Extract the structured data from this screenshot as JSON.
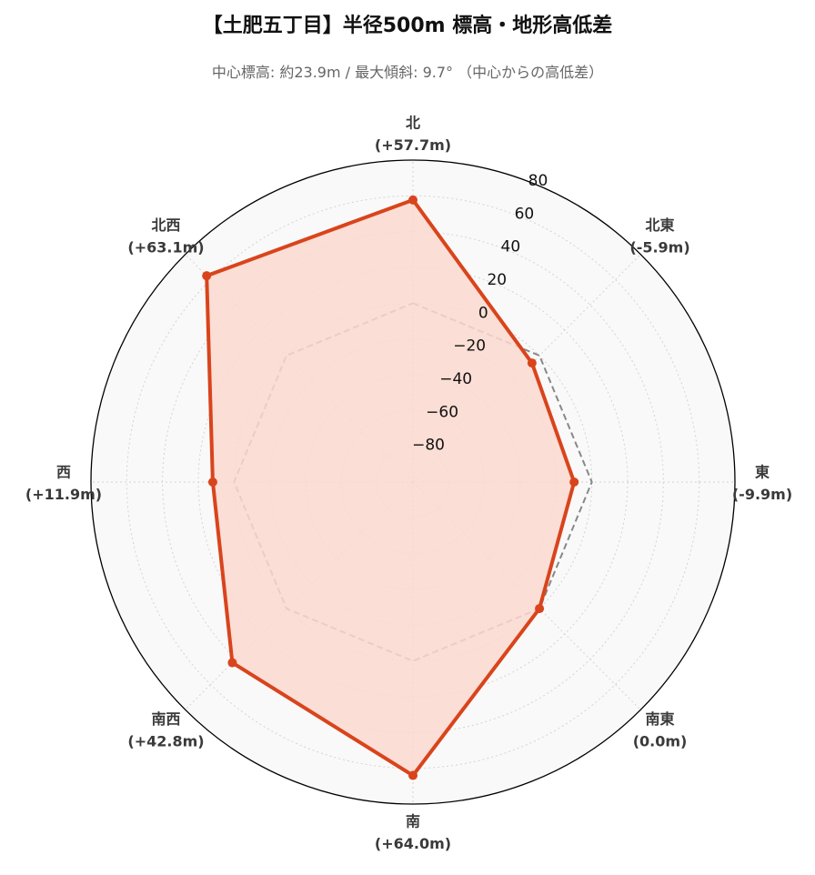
{
  "chart_data": {
    "type": "radar",
    "title": "【土肥五丁目】半径500m 標高・地形高低差",
    "subtitle": "中心標高: 約23.9m / 最大傾斜: 9.7° （中心からの高低差）",
    "directions": [
      "北",
      "北東",
      "東",
      "南東",
      "南",
      "南西",
      "西",
      "北西"
    ],
    "direction_value_labels": [
      "(+57.7m)",
      "(-5.9m)",
      "(-9.9m)",
      "(0.0m)",
      "(+64.0m)",
      "(+42.8m)",
      "(+11.9m)",
      "(+63.1m)"
    ],
    "series": [
      {
        "values": [
          57.7,
          -5.9,
          -9.9,
          0.0,
          64.0,
          42.8,
          11.9,
          63.1
        ],
        "color": "#d9441c",
        "fill": "#fcd9cf"
      }
    ],
    "reference": {
      "value": 0,
      "style": "dashed",
      "color": "#888888"
    },
    "rlim": [
      -100,
      80
    ],
    "rticks": [
      -80,
      -60,
      -40,
      -20,
      0,
      20,
      40,
      60,
      80
    ],
    "rtick_labels": [
      "−80",
      "−60",
      "−40",
      "−20",
      "0",
      "20",
      "40",
      "60",
      "80"
    ],
    "grid": true
  }
}
